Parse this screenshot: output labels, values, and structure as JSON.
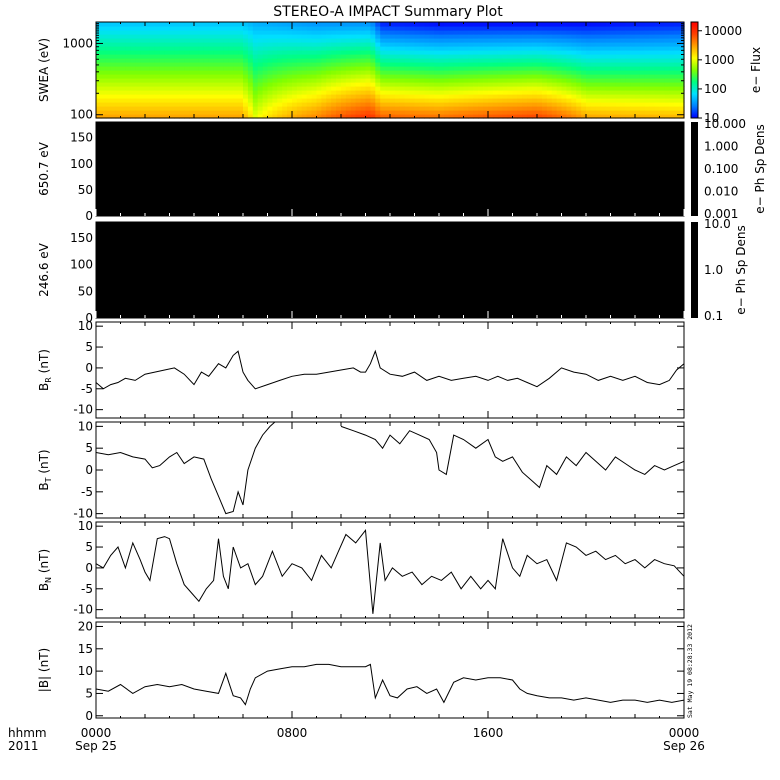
{
  "title": "STEREO-A IMPACT Summary Plot",
  "time_axis": {
    "row1_labels": [
      "0000",
      "0800",
      "1600",
      "0000"
    ],
    "row2_labels": [
      "Sep 25",
      "",
      "",
      "Sep 26"
    ],
    "row1_name": "hhmm",
    "row2_name": "2011",
    "hours": [
      0,
      8,
      16,
      24
    ]
  },
  "stamp": "Sat May 19 08:28:33 2012",
  "colors": {
    "colorbar": [
      "#0000ff",
      "#0080ff",
      "#00e0ff",
      "#00ff80",
      "#80ff00",
      "#ffff00",
      "#ffa000",
      "#ff4000",
      "#ff0000"
    ],
    "background": "#ffffff",
    "lines": "#000000",
    "empty_panel": "#000000"
  },
  "chart_data": [
    {
      "type": "heatmap",
      "ylabel": "SWEA (eV)",
      "yticks": [
        "100",
        "1000"
      ],
      "log_y": true,
      "ylim": [
        90,
        2000
      ],
      "colorbar_label": "e− Flux",
      "colorbar_ticks": [
        "10",
        "100",
        "1000",
        "10000"
      ],
      "colorbar_log_range": [
        10,
        20000
      ],
      "flux_profile_hours": [
        0,
        5.9,
        6.5,
        9.0,
        11.2,
        11.6,
        14.0,
        18.0,
        20.0,
        24.0
      ],
      "flux_profile_at_100eV": [
        3000,
        3000,
        1000,
        4000,
        10000,
        6000,
        5000,
        8000,
        3000,
        2500
      ],
      "flux_profile_at_1800eV": [
        50,
        50,
        40,
        30,
        30,
        12,
        10,
        10,
        10,
        12
      ]
    },
    {
      "type": "heatmap",
      "ylabel": "650.7 eV",
      "yticks": [
        "0",
        "50",
        "100",
        "150"
      ],
      "ylim": [
        0,
        180
      ],
      "colorbar_label": "e− Ph Sp Dens",
      "colorbar_ticks": [
        "10.000",
        "1.000",
        "0.100",
        "0.010",
        "0.001"
      ],
      "values": "all black (no data)"
    },
    {
      "type": "heatmap",
      "ylabel": "246.6 eV",
      "yticks": [
        "0",
        "50",
        "100",
        "150"
      ],
      "ylim": [
        0,
        180
      ],
      "colorbar_label": "e− Ph Sp Dens",
      "colorbar_ticks": [
        "10.0",
        "1.0",
        "0.1"
      ],
      "values": "all black (no data)"
    },
    {
      "type": "line",
      "ylabel": "B",
      "ylabel_sub": "R",
      "ylabel_unit": " (nT)",
      "ylim": [
        -12,
        11
      ],
      "yticks": [
        -10,
        -5,
        0,
        5,
        10
      ],
      "x": [
        0,
        0.3,
        0.6,
        0.9,
        1.2,
        1.6,
        2.0,
        2.4,
        2.8,
        3.2,
        3.6,
        4.0,
        4.3,
        4.6,
        5.0,
        5.3,
        5.6,
        5.8,
        6.0,
        6.2,
        6.5,
        7.0,
        7.5,
        8.0,
        8.5,
        9.0,
        9.5,
        10.0,
        10.5,
        10.8,
        11.0,
        11.2,
        11.4,
        11.6,
        12.0,
        12.5,
        13.0,
        13.5,
        14.0,
        14.5,
        15.0,
        15.5,
        16.0,
        16.4,
        16.8,
        17.2,
        17.6,
        18.0,
        18.5,
        19.0,
        19.5,
        20.0,
        20.5,
        21.0,
        21.5,
        22.0,
        22.5,
        23.0,
        23.4,
        23.7,
        24.0
      ],
      "y": [
        -3.5,
        -5,
        -4,
        -3.5,
        -2.5,
        -3,
        -1.5,
        -1,
        -0.5,
        0,
        -1.5,
        -4,
        -1,
        -2,
        1,
        0,
        3,
        4,
        -1,
        -3,
        -5,
        -4,
        -3,
        -2,
        -1.5,
        -1.5,
        -1,
        -0.5,
        0,
        -1,
        -1,
        1,
        4,
        0,
        -1.5,
        -2,
        -1,
        -3,
        -2,
        -3,
        -2.5,
        -2,
        -3,
        -2,
        -3,
        -2.5,
        -3.5,
        -4.5,
        -2.5,
        0,
        -1,
        -1.5,
        -3,
        -2,
        -3,
        -2,
        -3.5,
        -4,
        -3,
        -0.5,
        1
      ]
    },
    {
      "type": "line",
      "ylabel": "B",
      "ylabel_sub": "T",
      "ylabel_unit": " (nT)",
      "ylim": [
        -11,
        11
      ],
      "yticks": [
        -10,
        -5,
        0,
        5,
        10
      ],
      "x": [
        0,
        0.5,
        1.0,
        1.5,
        2.0,
        2.3,
        2.6,
        2.8,
        3.0,
        3.3,
        3.6,
        4.0,
        4.4,
        4.7,
        5.0,
        5.3,
        5.6,
        5.8,
        6.0,
        6.2,
        6.5,
        6.8,
        7.1,
        7.3,
        8.0,
        9.0,
        9.8,
        10.0,
        10.5,
        11.0,
        11.4,
        11.7,
        12.0,
        12.4,
        12.8,
        13.2,
        13.6,
        13.9,
        14.0,
        14.3,
        14.6,
        15.0,
        15.5,
        16.0,
        16.3,
        16.6,
        17.0,
        17.4,
        17.8,
        18.1,
        18.4,
        18.8,
        19.2,
        19.6,
        20.0,
        20.4,
        20.8,
        21.2,
        21.6,
        22.0,
        22.4,
        22.8,
        23.2,
        23.6,
        24.0
      ],
      "y": [
        4,
        3.5,
        4,
        3,
        2.5,
        0.5,
        1,
        2,
        3,
        4,
        1.5,
        3,
        2.5,
        -2,
        -6,
        -10,
        -9.5,
        -5,
        -8,
        0,
        5,
        8,
        10,
        11,
        null,
        null,
        null,
        10,
        9,
        8,
        7,
        5,
        8,
        6,
        9,
        8,
        7,
        4,
        0,
        -1,
        8,
        7,
        5,
        7,
        3,
        2,
        3,
        -0.5,
        -2.5,
        -4,
        1,
        -1,
        3,
        1,
        4,
        2,
        0,
        3,
        1.5,
        0,
        -1,
        1,
        0,
        1,
        2
      ]
    },
    {
      "type": "line",
      "ylabel": "B",
      "ylabel_sub": "N",
      "ylabel_unit": " (nT)",
      "ylim": [
        -12,
        11
      ],
      "yticks": [
        -10,
        -5,
        0,
        5,
        10
      ],
      "x": [
        0,
        0.3,
        0.6,
        0.9,
        1.2,
        1.5,
        1.8,
        2.0,
        2.2,
        2.5,
        2.8,
        3.0,
        3.3,
        3.6,
        3.9,
        4.2,
        4.5,
        4.8,
        5.0,
        5.2,
        5.4,
        5.6,
        5.9,
        6.2,
        6.5,
        6.8,
        7.2,
        7.6,
        8.0,
        8.4,
        8.8,
        9.2,
        9.6,
        9.9,
        10.2,
        10.6,
        11.0,
        11.3,
        11.6,
        11.8,
        12.1,
        12.5,
        12.9,
        13.3,
        13.7,
        14.1,
        14.5,
        14.9,
        15.3,
        15.7,
        16.0,
        16.3,
        16.6,
        17.0,
        17.3,
        17.6,
        18.0,
        18.4,
        18.8,
        19.2,
        19.6,
        20.0,
        20.4,
        20.8,
        21.2,
        21.6,
        22.0,
        22.4,
        22.8,
        23.2,
        23.6,
        24.0
      ],
      "y": [
        1,
        0,
        3,
        5,
        0,
        6,
        2,
        -1,
        -3,
        7,
        7.5,
        7,
        1,
        -4,
        -6,
        -8,
        -5,
        -3,
        7,
        -2,
        -5,
        5,
        0,
        1,
        -4,
        -2,
        4,
        -2,
        1,
        0,
        -3,
        3,
        0,
        4,
        8,
        6,
        9,
        -11,
        6,
        -3,
        0,
        -2,
        -1,
        -4,
        -2,
        -3,
        -1,
        -5,
        -2,
        -5,
        -3,
        -5,
        7,
        0,
        -2,
        3,
        1,
        2,
        -3,
        6,
        5,
        3,
        4,
        2,
        3,
        1,
        2,
        0,
        2,
        1,
        0.5,
        -2
      ]
    },
    {
      "type": "line",
      "ylabel": "|B| (nT)",
      "ylim": [
        -0.5,
        21
      ],
      "yticks": [
        0,
        5,
        10,
        15,
        20
      ],
      "x": [
        0,
        0.5,
        1.0,
        1.5,
        2.0,
        2.5,
        3.0,
        3.5,
        4.0,
        4.5,
        5.0,
        5.3,
        5.6,
        5.9,
        6.1,
        6.3,
        6.5,
        7.0,
        7.5,
        8.0,
        8.5,
        9.0,
        9.5,
        10.0,
        10.5,
        11.0,
        11.2,
        11.4,
        11.7,
        12.0,
        12.3,
        12.7,
        13.1,
        13.5,
        13.9,
        14.2,
        14.6,
        15.0,
        15.5,
        16.0,
        16.5,
        17.0,
        17.3,
        17.6,
        18.0,
        18.5,
        19.0,
        19.5,
        20.0,
        20.5,
        21.0,
        21.5,
        22.0,
        22.5,
        23.0,
        23.5,
        24.0
      ],
      "y": [
        6,
        5.5,
        7,
        5,
        6.5,
        7,
        6.5,
        7,
        6,
        5.5,
        5,
        9.5,
        4.5,
        4,
        2.5,
        6,
        8.5,
        10,
        10.5,
        11,
        11,
        11.5,
        11.5,
        11,
        11,
        11,
        11.5,
        4,
        8,
        4.5,
        4,
        6,
        6.5,
        5,
        6,
        3,
        7.5,
        8.5,
        8,
        8.5,
        8.5,
        8,
        6,
        5,
        4.5,
        4,
        4,
        3.5,
        4,
        3.5,
        3,
        3.5,
        3.5,
        3,
        3.5,
        3,
        3.5
      ]
    }
  ]
}
